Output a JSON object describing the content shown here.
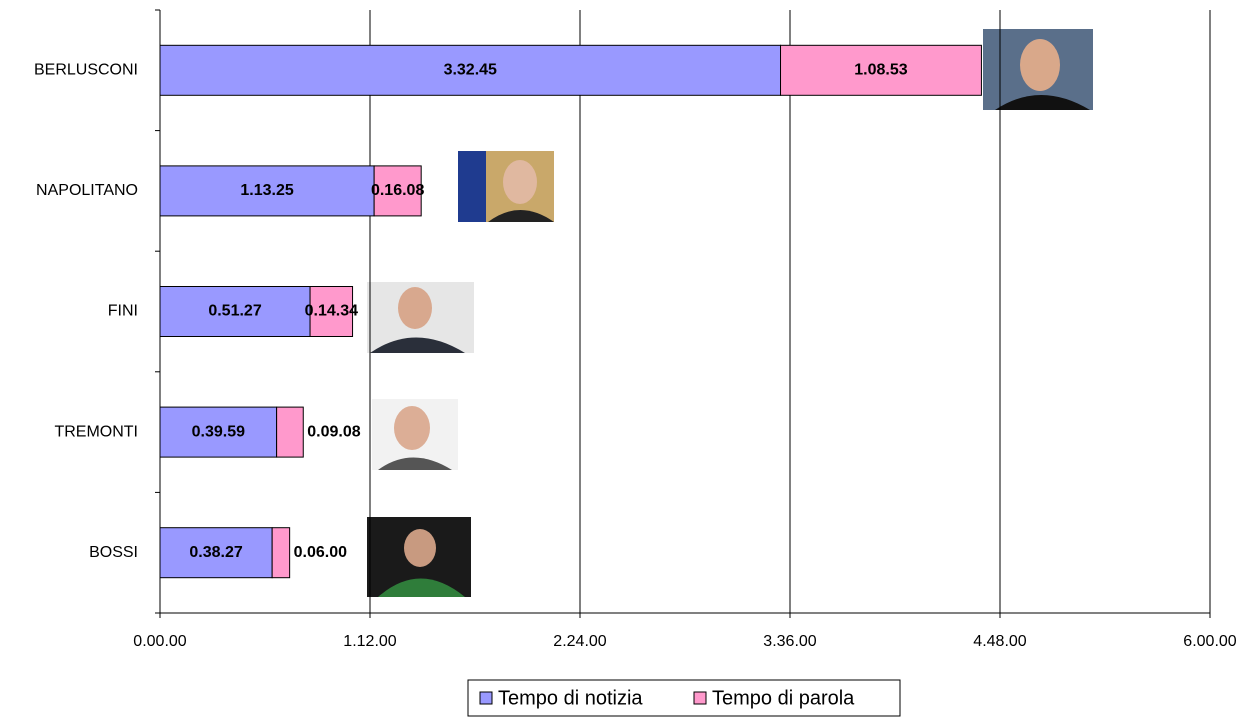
{
  "chart_data": {
    "type": "stacked-barh",
    "categories": [
      "BERLUSCONI",
      "NAPOLITANO",
      "FINI",
      "TREMONTI",
      "BOSSI"
    ],
    "series": [
      {
        "name": "Tempo di notizia",
        "color": "#9999ff",
        "values": [
          12765,
          4405,
          3087,
          2399,
          2307
        ],
        "value_labels": [
          "3.32.45",
          "1.13.25",
          "0.51.27",
          "0.39.59",
          "0.38.27"
        ]
      },
      {
        "name": "Tempo di parola",
        "color": "#ff99cc",
        "values": [
          4133,
          968,
          874,
          548,
          360
        ],
        "value_labels": [
          "1.08.53",
          "0.16.08",
          "0.14.34",
          "0.09.08",
          "0.06.00"
        ]
      }
    ],
    "xlim": [
      0,
      21600
    ],
    "xticks": [
      {
        "value": 0,
        "label": "0.00.00"
      },
      {
        "value": 4320,
        "label": "1.12.00"
      },
      {
        "value": 8640,
        "label": "2.24.00"
      },
      {
        "value": 12960,
        "label": "3.36.00"
      },
      {
        "value": 17280,
        "label": "4.48.00"
      },
      {
        "value": 21600,
        "label": "6.00.00"
      }
    ],
    "grid": true,
    "legend": "bottom"
  }
}
